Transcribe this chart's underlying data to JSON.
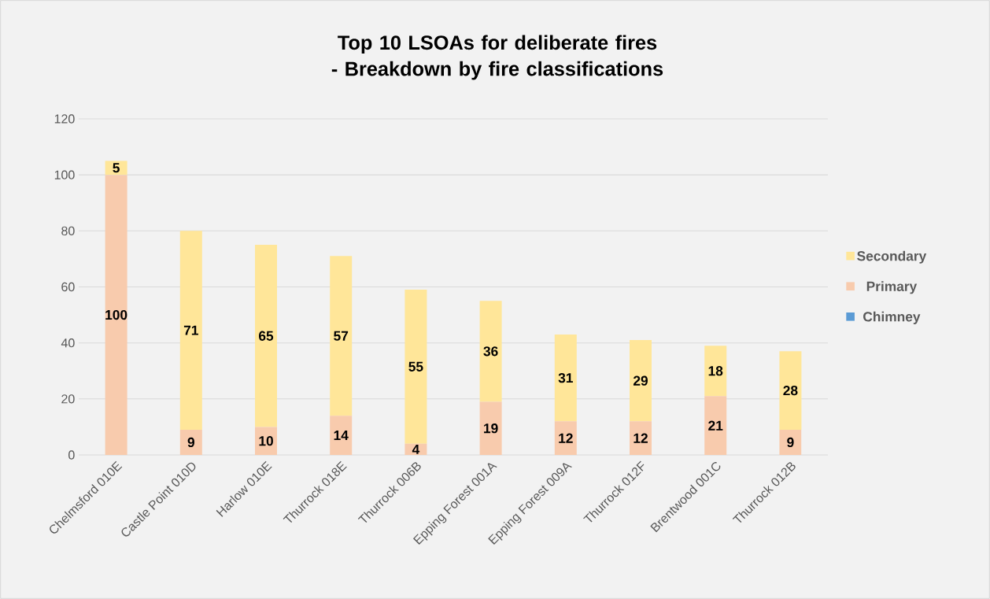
{
  "chart_data": {
    "type": "bar",
    "stacked": true,
    "title": "Top 10 LSOAs for deliberate fires - Breakdown by fire classifications",
    "categories": [
      "Chelmsford 010E",
      "Castle Point 010D",
      "Harlow 010E",
      "Thurrock 018E",
      "Thurrock 006B",
      "Epping Forest 001A",
      "Epping Forest 009A",
      "Thurrock 012F",
      "Brentwood 001C",
      "Thurrock 012B"
    ],
    "series": [
      {
        "name": "Chimney",
        "color": "#5b9bd5",
        "values": [
          0,
          0,
          0,
          0,
          0,
          0,
          0,
          0,
          0,
          0
        ]
      },
      {
        "name": "Primary",
        "color": "#f8cbad",
        "values": [
          100,
          9,
          10,
          14,
          4,
          19,
          12,
          12,
          21,
          9
        ],
        "value_labels": [
          "100",
          "9",
          "10",
          "14",
          "4",
          "19",
          "12",
          "12",
          "21",
          "9"
        ]
      },
      {
        "name": "Secondary",
        "color": "#ffe699",
        "values": [
          5,
          71,
          65,
          57,
          55,
          36,
          31,
          29,
          18,
          28
        ],
        "value_labels": [
          "5",
          "71",
          "65",
          "57",
          "55",
          "36",
          "31",
          "29",
          "18",
          "28"
        ]
      }
    ],
    "ylim": [
      0,
      120
    ],
    "yticks": [
      0,
      20,
      40,
      60,
      80,
      100,
      120
    ],
    "grid": "y",
    "legend": "right"
  }
}
